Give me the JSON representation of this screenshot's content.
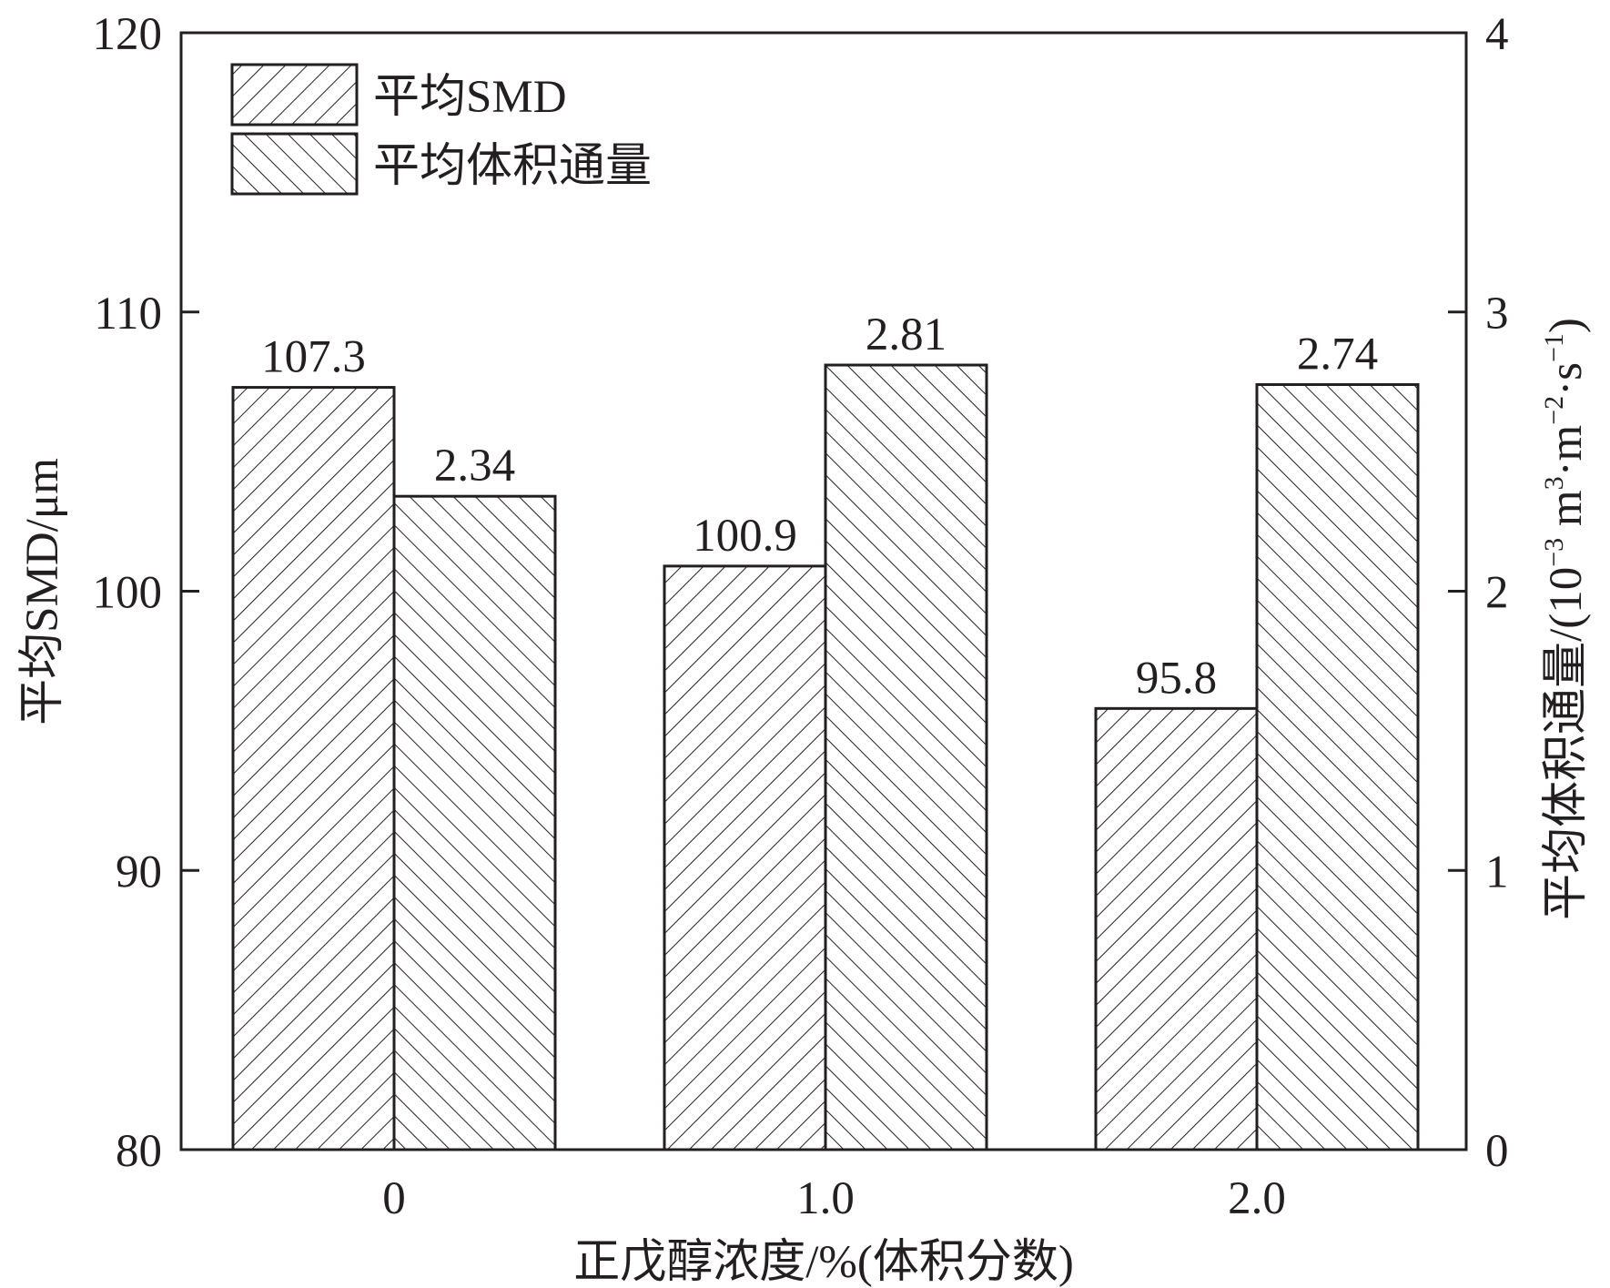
{
  "chart_data": {
    "type": "bar",
    "categories": [
      "0",
      "1.0",
      "2.0"
    ],
    "xlabel": "正戊醇浓度/%(体积分数)",
    "ylabel_left": "平均SMD/μm",
    "ylabel_right_main": "平均体积通量/(10",
    "ylabel_right_sup1": "−3",
    "ylabel_right_mid1": " m",
    "ylabel_right_sup2": "3",
    "ylabel_right_mid2": "·m",
    "ylabel_right_sup3": "−2",
    "ylabel_right_mid3": "·s",
    "ylabel_right_sup4": "−1",
    "ylabel_right_end": ")",
    "ylim_left": [
      80,
      120
    ],
    "yticks_left": [
      80,
      90,
      100,
      110,
      120
    ],
    "ylim_right": [
      0,
      4
    ],
    "yticks_right": [
      0,
      1,
      2,
      3,
      4
    ],
    "grid": false,
    "legend_position": "top-left",
    "series": [
      {
        "name": "平均SMD",
        "axis": "left",
        "pattern": "forward-hatch",
        "values": [
          107.3,
          100.9,
          95.8
        ],
        "labels": [
          "107.3",
          "100.9",
          "95.8"
        ]
      },
      {
        "name": "平均体积通量",
        "axis": "right",
        "pattern": "back-hatch",
        "values": [
          2.34,
          2.81,
          2.74
        ],
        "labels": [
          "2.34",
          "2.81",
          "2.74"
        ]
      }
    ]
  },
  "colors": {
    "ink": "#231f20",
    "background": "#ffffff"
  }
}
